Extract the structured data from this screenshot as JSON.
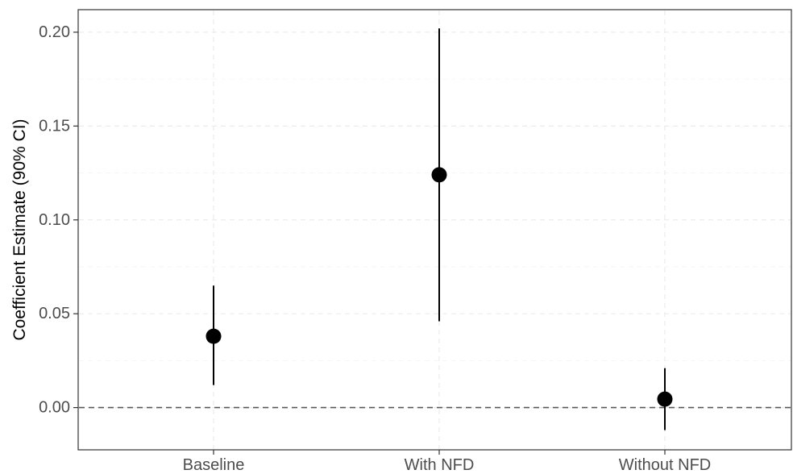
{
  "chart_data": {
    "type": "scatter",
    "subtype": "point-range",
    "title": "",
    "xlabel": "",
    "ylabel": "Coefficient Estimate (90% CI)",
    "categories": [
      "Baseline",
      "With NFD",
      "Without NFD"
    ],
    "series": [
      {
        "estimates": [
          0.038,
          0.124,
          0.0045
        ],
        "ci_lower": [
          0.012,
          0.046,
          -0.012
        ],
        "ci_upper": [
          0.065,
          0.202,
          0.021
        ]
      }
    ],
    "ylim": [
      -0.0225,
      0.212
    ],
    "yticks": [
      0.0,
      0.05,
      0.1,
      0.15,
      0.2
    ],
    "ytick_labels": [
      "0.00",
      "0.05",
      "0.10",
      "0.15",
      "0.20"
    ],
    "reference_line": {
      "y": 0,
      "style": "dashed"
    },
    "grid": true,
    "legend": "none",
    "colors": {
      "points": "#000000",
      "reference_line": "#595959",
      "panel_border": "#333333",
      "grid": "#ebebeb",
      "tick_text": "#4d4d4d"
    }
  }
}
